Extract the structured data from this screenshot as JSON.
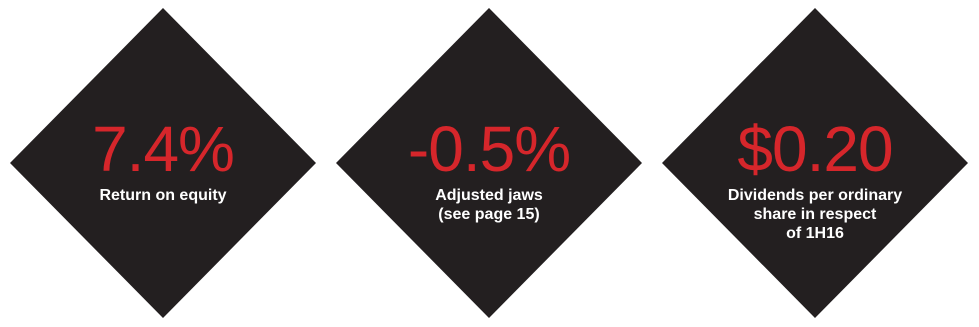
{
  "theme": {
    "diamond_color": "#231f20",
    "value_color": "#d6262b",
    "label_color": "#ffffff"
  },
  "kpis": [
    {
      "value": "7.4%",
      "label": "Return on equity"
    },
    {
      "value": "-0.5%",
      "label": "Adjusted jaws\n(see page 15)"
    },
    {
      "value": "$0.20",
      "label": "Dividends per ordinary\nshare in respect\nof 1H16"
    }
  ]
}
